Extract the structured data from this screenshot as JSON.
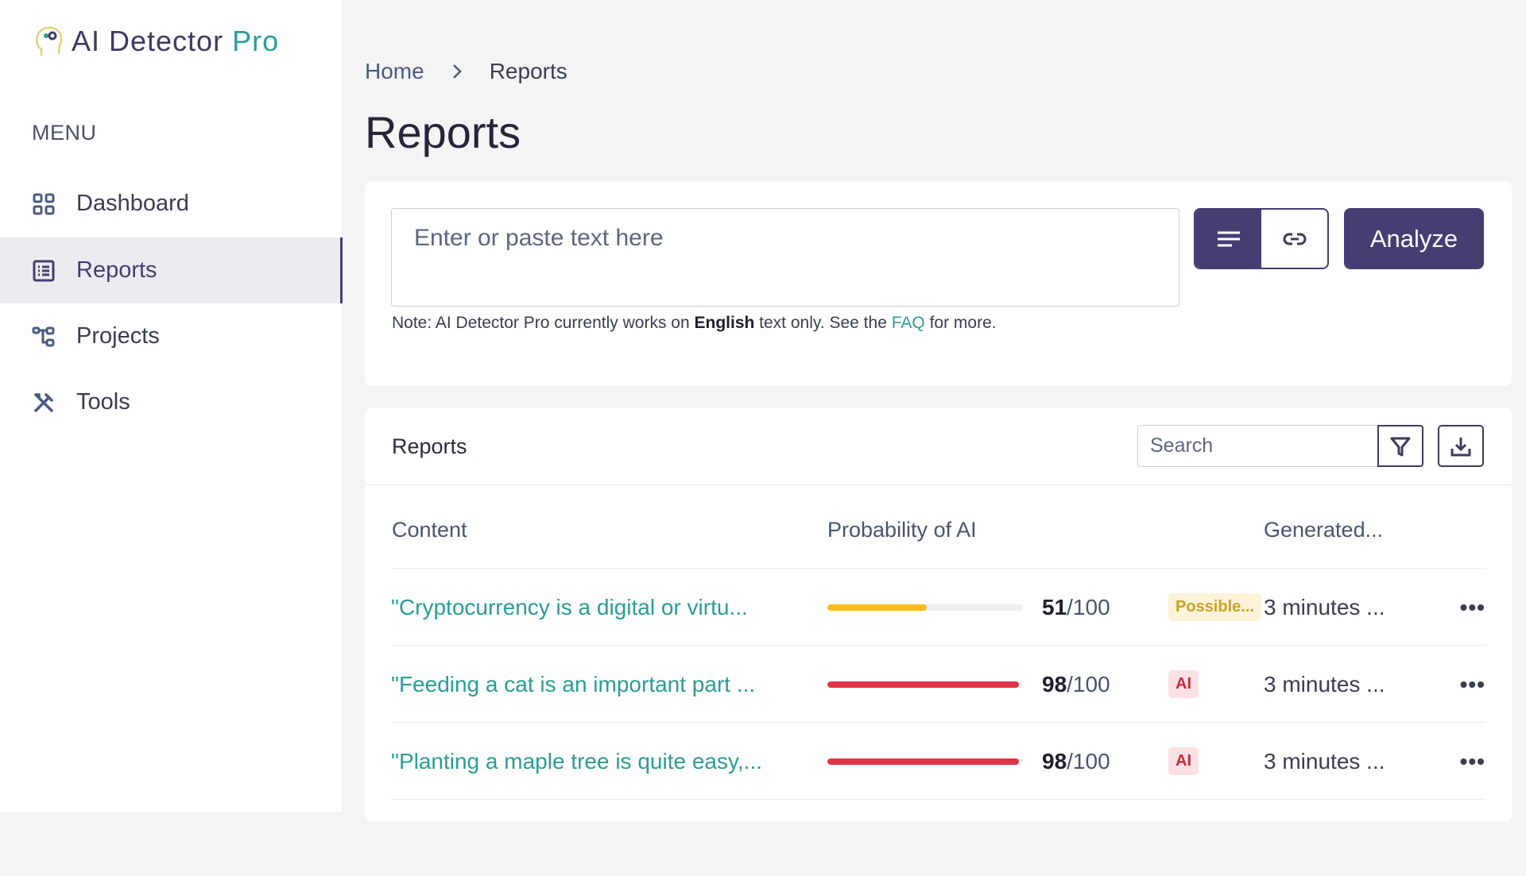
{
  "brand": {
    "name": "AI Detector",
    "suffix": "Pro"
  },
  "sidebar": {
    "menu_label": "MENU",
    "items": [
      {
        "label": "Dashboard",
        "icon": "grid-icon"
      },
      {
        "label": "Reports",
        "icon": "list-icon",
        "active": true
      },
      {
        "label": "Projects",
        "icon": "tree-icon"
      },
      {
        "label": "Tools",
        "icon": "tools-icon"
      }
    ]
  },
  "breadcrumb": {
    "home": "Home",
    "current": "Reports"
  },
  "page_title": "Reports",
  "analyzer": {
    "placeholder": "Enter or paste text here",
    "mode_text_icon": "text-lines-icon",
    "mode_link_icon": "link-icon",
    "analyze_label": "Analyze",
    "note_prefix": "Note: AI Detector Pro currently works on ",
    "note_bold": "English",
    "note_mid": " text only. See the ",
    "note_link": "FAQ",
    "note_suffix": " for more."
  },
  "reports": {
    "title": "Reports",
    "search_placeholder": "Search",
    "columns": [
      "Content",
      "Probability of AI",
      "Generated..."
    ],
    "rows": [
      {
        "content": "\"Cryptocurrency is a digital or virtu...",
        "score": "51",
        "max": "/100",
        "percent": 51,
        "badge": "Possible...",
        "badge_color": "#c9a227",
        "badge_bg": "#fdf3d8",
        "bar_color": "#f6bb1f",
        "generated": "3 minutes ..."
      },
      {
        "content": "\"Feeding a cat is an important part ...",
        "score": "98",
        "max": "/100",
        "percent": 98,
        "badge": "AI",
        "badge_color": "#c62a3c",
        "badge_bg": "#fbe1e4",
        "bar_color": "#dc3545",
        "generated": "3 minutes ..."
      },
      {
        "content": "\"Planting a maple tree is quite easy,...",
        "score": "98",
        "max": "/100",
        "percent": 98,
        "badge": "AI",
        "badge_color": "#c62a3c",
        "badge_bg": "#fbe1e4",
        "bar_color": "#dc3545",
        "generated": "3 minutes ..."
      }
    ]
  },
  "colors": {
    "primary": "#463d72",
    "accent": "#2a9d95"
  }
}
